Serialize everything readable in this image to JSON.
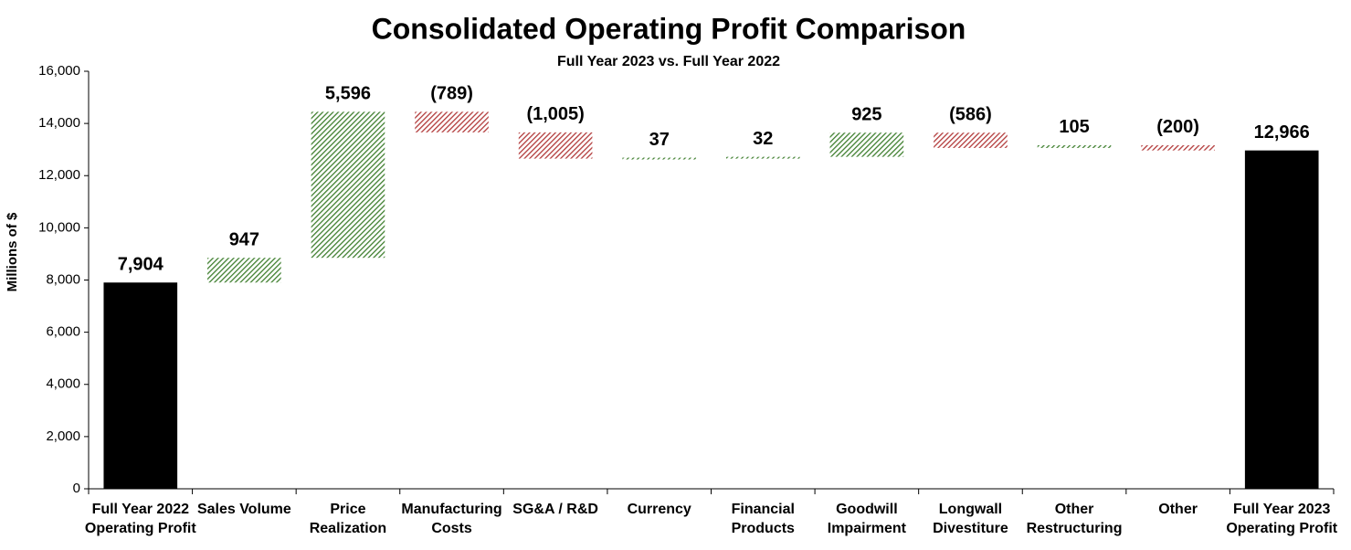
{
  "chart_data": {
    "type": "waterfall",
    "title": "Consolidated Operating Profit Comparison",
    "subtitle": "Full Year 2023 vs. Full Year 2022",
    "y_label": "Millions of $",
    "categories": [
      [
        "Full Year 2022",
        "Operating Profit"
      ],
      [
        "Sales Volume"
      ],
      [
        "Price",
        "Realization"
      ],
      [
        "Manufacturing",
        "Costs"
      ],
      [
        "SG&A / R&D"
      ],
      [
        "Currency"
      ],
      [
        "Financial",
        "Products"
      ],
      [
        "Goodwill",
        "Impairment"
      ],
      [
        "Longwall",
        "Divestiture"
      ],
      [
        "Other",
        "Restructuring"
      ],
      [
        "Other"
      ],
      [
        "Full Year 2023",
        "Operating Profit"
      ]
    ],
    "measure": [
      "absolute",
      "relative",
      "relative",
      "relative",
      "relative",
      "relative",
      "relative",
      "relative",
      "relative",
      "relative",
      "relative",
      "total"
    ],
    "values": [
      7904,
      947,
      5596,
      -789,
      -1005,
      37,
      32,
      925,
      -586,
      105,
      -200,
      12966
    ],
    "value_labels": [
      "7,904",
      "947",
      "5,596",
      "(789)",
      "(1,005)",
      "37",
      "32",
      "925",
      "(586)",
      "105",
      "(200)",
      "12,966"
    ],
    "colors": {
      "total": "#000000",
      "increase": "#3f7f2f",
      "decrease": "#b23a3a"
    },
    "ylim": [
      0,
      16000
    ],
    "yticks": [
      0,
      {
        "value": 2000,
        "label": "2,000"
      },
      {
        "value": 4000,
        "label": "4,000"
      },
      {
        "value": 6000,
        "label": "6,000"
      },
      {
        "value": 8000,
        "label": "8,000"
      },
      {
        "value": 10000,
        "label": "10,000"
      },
      {
        "value": 12000,
        "label": "12,000"
      },
      {
        "value": 14000,
        "label": "14,000"
      },
      {
        "value": 16000,
        "label": "16,000"
      }
    ]
  }
}
